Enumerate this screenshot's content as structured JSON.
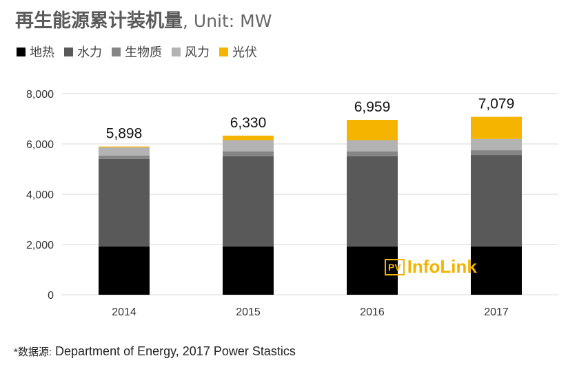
{
  "header": {
    "title": "再生能源累计装机量",
    "unit": ", Unit: MW"
  },
  "footer": {
    "source_prefix": "*数据源:",
    "source_text": "Department of Energy, 2017 Power Stastics"
  },
  "logo": {
    "badge": "PV",
    "text": "InfoLink"
  },
  "colors": {
    "地热": "#000000",
    "水力": "#595959",
    "生物质": "#858585",
    "风力": "#b3b3b3",
    "光伏": "#f4b400"
  },
  "chart_data": {
    "type": "bar",
    "stacked": true,
    "title": "再生能源累计装机量, Unit: MW",
    "categories": [
      "2014",
      "2015",
      "2016",
      "2017"
    ],
    "series": [
      {
        "name": "地热",
        "values": [
          1920,
          1920,
          1920,
          1920
        ]
      },
      {
        "name": "水力",
        "values": [
          3480,
          3590,
          3590,
          3640
        ]
      },
      {
        "name": "生物质",
        "values": [
          140,
          190,
          190,
          190
        ]
      },
      {
        "name": "风力",
        "values": [
          320,
          450,
          450,
          450
        ]
      },
      {
        "name": "光伏",
        "values": [
          38,
          180,
          809,
          879
        ]
      }
    ],
    "totals": [
      "5,898",
      "6,330",
      "6,959",
      "7,079"
    ],
    "ylim": [
      0,
      8000
    ],
    "yticks": [
      "0",
      "2,000",
      "4,000",
      "6,000",
      "8,000"
    ],
    "yticks_values": [
      0,
      2000,
      4000,
      6000,
      8000
    ],
    "grid": true,
    "legend_position": "top-left"
  }
}
